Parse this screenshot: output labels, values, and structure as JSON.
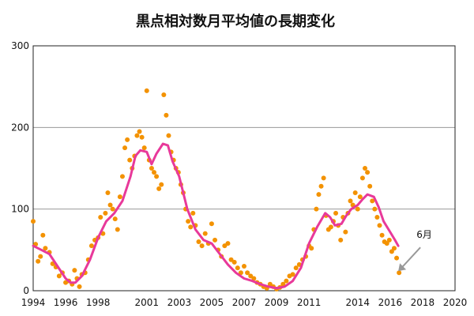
{
  "chart_data": {
    "type": "scatter",
    "title": "黒点相対数月平均値の長期変化",
    "xlabel": "",
    "ylabel": "",
    "xlim": [
      1994,
      2020
    ],
    "ylim": [
      0,
      300
    ],
    "xticks": [
      1994,
      1996,
      1998,
      2001,
      2003,
      2005,
      2007,
      2009,
      2011,
      2014,
      2016,
      2018,
      2020
    ],
    "xtick_labels": [
      "1994",
      "1996",
      "1998",
      "2001",
      "2003",
      "2005",
      "2007",
      "2009",
      "2011",
      "2014",
      "2016",
      "2018",
      "2020"
    ],
    "yticks": [
      0,
      100,
      200,
      300
    ],
    "ytick_labels": [
      "0",
      "100",
      "200",
      "300"
    ],
    "grid": "horizontal",
    "colors": {
      "monthly": "#f39200",
      "smoothed": "#e8399a",
      "annotation": "#999999",
      "grid": "#999999"
    },
    "annotation": {
      "text": "6月",
      "x": 2016.5,
      "y": 24
    },
    "series": [
      {
        "name": "monthly",
        "style": "points",
        "x": [
          1994.0,
          1994.15,
          1994.3,
          1994.45,
          1994.6,
          1994.75,
          1995.0,
          1995.2,
          1995.4,
          1995.6,
          1995.8,
          1996.0,
          1996.2,
          1996.4,
          1996.55,
          1996.7,
          1996.85,
          1997.0,
          1997.2,
          1997.4,
          1997.6,
          1997.8,
          1998.0,
          1998.15,
          1998.3,
          1998.45,
          1998.6,
          1998.75,
          1998.9,
          1999.05,
          1999.2,
          1999.35,
          1999.5,
          1999.65,
          1999.8,
          1999.95,
          2000.1,
          2000.25,
          2000.4,
          2000.55,
          2000.7,
          2000.85,
          2001.0,
          2001.15,
          2001.3,
          2001.45,
          2001.6,
          2001.75,
          2001.9,
          2002.05,
          2002.2,
          2002.35,
          2002.5,
          2002.65,
          2002.8,
          2002.95,
          2003.1,
          2003.25,
          2003.4,
          2003.55,
          2003.7,
          2003.85,
          2004.0,
          2004.2,
          2004.4,
          2004.6,
          2004.8,
          2005.0,
          2005.2,
          2005.4,
          2005.6,
          2005.8,
          2006.0,
          2006.2,
          2006.4,
          2006.6,
          2006.8,
          2007.0,
          2007.2,
          2007.4,
          2007.6,
          2007.8,
          2008.0,
          2008.2,
          2008.4,
          2008.6,
          2008.8,
          2009.0,
          2009.2,
          2009.4,
          2009.6,
          2009.8,
          2010.0,
          2010.2,
          2010.4,
          2010.6,
          2010.8,
          2011.0,
          2011.15,
          2011.3,
          2011.45,
          2011.6,
          2011.75,
          2011.9,
          2012.05,
          2012.2,
          2012.35,
          2012.5,
          2012.65,
          2012.8,
          2012.95,
          2013.1,
          2013.25,
          2013.4,
          2013.55,
          2013.7,
          2013.85,
          2014.0,
          2014.15,
          2014.3,
          2014.45,
          2014.6,
          2014.75,
          2014.9,
          2015.05,
          2015.2,
          2015.35,
          2015.5,
          2015.65,
          2015.8,
          2015.95,
          2016.1,
          2016.25,
          2016.4,
          2016.55
        ],
        "y": [
          85,
          57,
          36,
          42,
          68,
          52,
          47,
          33,
          29,
          18,
          22,
          10,
          12,
          8,
          25,
          15,
          5,
          20,
          22,
          38,
          55,
          62,
          65,
          90,
          70,
          95,
          120,
          105,
          100,
          88,
          75,
          115,
          140,
          175,
          185,
          160,
          150,
          165,
          190,
          195,
          188,
          175,
          245,
          160,
          150,
          145,
          140,
          125,
          130,
          240,
          215,
          190,
          170,
          160,
          150,
          145,
          130,
          120,
          100,
          85,
          78,
          95,
          80,
          60,
          55,
          70,
          58,
          82,
          62,
          50,
          42,
          55,
          58,
          38,
          35,
          28,
          22,
          30,
          22,
          18,
          15,
          10,
          8,
          5,
          3,
          8,
          5,
          2,
          4,
          8,
          12,
          18,
          20,
          28,
          32,
          38,
          42,
          55,
          52,
          75,
          100,
          118,
          128,
          138,
          92,
          75,
          78,
          85,
          95,
          80,
          62,
          90,
          72,
          95,
          110,
          105,
          120,
          100,
          115,
          138,
          150,
          145,
          128,
          110,
          100,
          90,
          80,
          68,
          60,
          58,
          62,
          48,
          52,
          40,
          22
        ]
      },
      {
        "name": "smoothed",
        "style": "line",
        "x": [
          1994.0,
          1994.5,
          1995.0,
          1995.5,
          1996.0,
          1996.3,
          1996.6,
          1997.0,
          1997.5,
          1998.0,
          1998.5,
          1999.0,
          1999.5,
          2000.0,
          2000.3,
          2000.6,
          2001.0,
          2001.3,
          2001.6,
          2002.0,
          2002.3,
          2002.6,
          2003.0,
          2003.5,
          2004.0,
          2004.5,
          2005.0,
          2005.5,
          2006.0,
          2006.5,
          2007.0,
          2007.5,
          2008.0,
          2008.5,
          2009.0,
          2009.5,
          2010.0,
          2010.5,
          2011.0,
          2011.5,
          2012.0,
          2012.3,
          2012.6,
          2013.0,
          2013.3,
          2013.6,
          2014.0,
          2014.3,
          2014.6,
          2015.0,
          2015.3,
          2015.6,
          2016.0,
          2016.3,
          2016.5
        ],
        "y": [
          55,
          50,
          45,
          30,
          15,
          10,
          10,
          18,
          38,
          65,
          85,
          95,
          110,
          140,
          165,
          172,
          170,
          155,
          168,
          180,
          178,
          158,
          140,
          100,
          75,
          62,
          58,
          45,
          32,
          22,
          15,
          12,
          8,
          5,
          3,
          5,
          12,
          28,
          58,
          78,
          95,
          90,
          80,
          82,
          92,
          100,
          105,
          112,
          118,
          115,
          102,
          85,
          72,
          62,
          55
        ]
      }
    ]
  }
}
